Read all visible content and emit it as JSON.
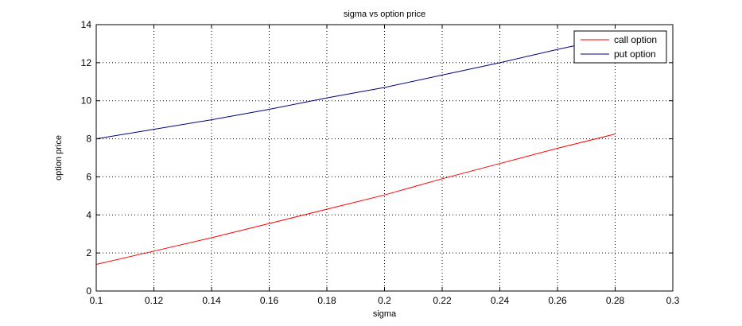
{
  "chart_data": {
    "type": "line",
    "title": "sigma vs option price",
    "xlabel": "sigma",
    "ylabel": "option price",
    "xlim": [
      0.1,
      0.3
    ],
    "ylim": [
      0,
      14
    ],
    "xticks": [
      0.1,
      0.12,
      0.14,
      0.16,
      0.18,
      0.2,
      0.22,
      0.24,
      0.26,
      0.28,
      0.3
    ],
    "xtick_labels": [
      "0.1",
      "0.12",
      "0.14",
      "0.16",
      "0.18",
      "0.2",
      "0.22",
      "0.24",
      "0.26",
      "0.28",
      "0.3"
    ],
    "yticks": [
      0,
      2,
      4,
      6,
      8,
      10,
      12,
      14
    ],
    "ytick_labels": [
      "0",
      "2",
      "4",
      "6",
      "8",
      "10",
      "12",
      "14"
    ],
    "grid": true,
    "legend_position": "top-right",
    "series": [
      {
        "name": "call option",
        "color": "#ff0000",
        "x": [
          0.1,
          0.12,
          0.14,
          0.16,
          0.18,
          0.2,
          0.22,
          0.24,
          0.26,
          0.28
        ],
        "y": [
          1.4,
          2.1,
          2.8,
          3.55,
          4.3,
          5.05,
          5.9,
          6.7,
          7.5,
          8.25
        ]
      },
      {
        "name": "put option",
        "color": "#000080",
        "x": [
          0.1,
          0.12,
          0.14,
          0.16,
          0.18,
          0.2,
          0.22,
          0.24,
          0.26,
          0.28
        ],
        "y": [
          8.0,
          8.5,
          9.0,
          9.55,
          10.15,
          10.7,
          11.35,
          12.0,
          12.7,
          13.35
        ]
      }
    ]
  }
}
